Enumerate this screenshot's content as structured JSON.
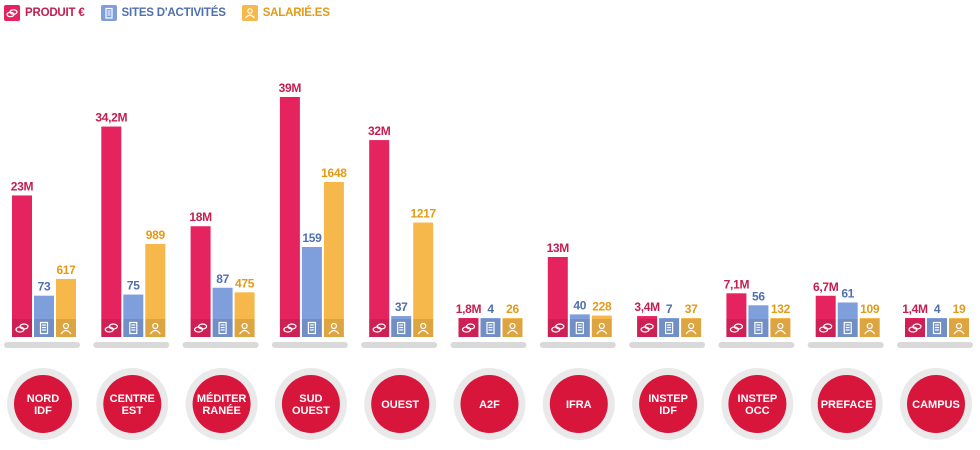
{
  "legend": {
    "produit": {
      "label": "PRODUIT €",
      "color": "#e5245f",
      "icon": "coins-icon"
    },
    "sites": {
      "label": "SITES D'ACTIVITÉS",
      "color": "#7e9fdc",
      "icon": "building-icon"
    },
    "salaries": {
      "label": "SALARIÉ.ES",
      "color": "#f6b84a",
      "icon": "employee-icon"
    }
  },
  "colors": {
    "bubble": "#d8163c",
    "bubble_ring": "#e9e9e9",
    "axis": "#d9d9d9",
    "produit_text": "#c41e4f",
    "sites_text": "#4f6fae",
    "salaries_text": "#e39a15"
  },
  "chart_data": {
    "type": "bar",
    "title": "",
    "xlabel": "",
    "ylabel": "",
    "categories": [
      "NORD IDF",
      "CENTRE EST",
      "MÉDITER RANÉE",
      "SUD OUEST",
      "OUEST",
      "A2F",
      "IFRA",
      "INSTEP IDF",
      "INSTEP OCC",
      "PREFACE",
      "CAMPUS"
    ],
    "series": [
      {
        "name": "PRODUIT €",
        "values": [
          23,
          34.2,
          18,
          39,
          32,
          1.8,
          13,
          3.4,
          7.1,
          6.7,
          1.4
        ],
        "labels": [
          "23M",
          "34,2M",
          "18M",
          "39M",
          "32M",
          "1,8M",
          "13M",
          "3,4M",
          "7,1M",
          "6,7M",
          "1,4M"
        ]
      },
      {
        "name": "SITES D'ACTIVITÉS",
        "values": [
          73,
          75,
          87,
          159,
          37,
          4,
          40,
          7,
          56,
          61,
          4
        ],
        "labels": [
          "73",
          "75",
          "87",
          "159",
          "37",
          "4",
          "40",
          "7",
          "56",
          "61",
          "4"
        ]
      },
      {
        "name": "SALARIÉ.ES",
        "values": [
          617,
          989,
          475,
          1648,
          1217,
          26,
          228,
          37,
          132,
          109,
          19
        ],
        "labels": [
          "617",
          "989",
          "475",
          "1648",
          "1217",
          "26",
          "228",
          "37",
          "132",
          "109",
          "19"
        ]
      }
    ]
  }
}
